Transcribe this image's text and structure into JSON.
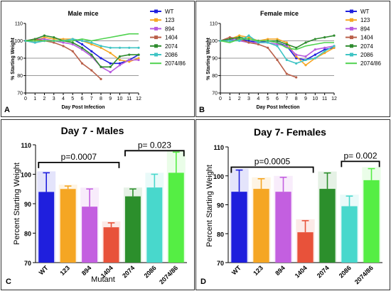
{
  "colors": {
    "WT": "#1f1fdd",
    "123": "#f5a623",
    "894": "#c35fe0",
    "1404": "#e8523a",
    "2074": "#2c8f2c",
    "2086": "#48d8cc",
    "2074/86": "#55ee44"
  },
  "line_colors": {
    "WT": "#1f1fdd",
    "123": "#f5a623",
    "894": "#b85adf",
    "1404": "#b9604a",
    "2074": "#2e8b2e",
    "2086": "#3fc4c4",
    "2074/86": "#4fd24f"
  },
  "chart_data": [
    {
      "panel": "A",
      "type": "line",
      "title": "Male mice",
      "xlabel": "Day Post Infection",
      "ylabel": "% Starting Weight",
      "x": [
        0,
        1,
        2,
        3,
        4,
        5,
        6,
        7,
        8,
        9,
        10,
        11,
        12
      ],
      "xlim": [
        0,
        12
      ],
      "ylim": [
        70,
        110
      ],
      "yticks": [
        70,
        80,
        90,
        100,
        110
      ],
      "series": [
        {
          "name": "WT",
          "x": [
            0,
            1,
            2,
            3,
            4,
            5,
            6,
            7,
            8,
            9,
            10,
            11,
            12
          ],
          "y": [
            100,
            99,
            100,
            100,
            100,
            101,
            98,
            94,
            90,
            87,
            87,
            89,
            92
          ]
        },
        {
          "name": "123",
          "x": [
            0,
            1,
            2,
            3,
            4,
            5,
            6,
            7,
            8,
            9,
            10,
            11,
            12
          ],
          "y": [
            100,
            100,
            102,
            101,
            101,
            101,
            100,
            98,
            96,
            93,
            89,
            88,
            90
          ]
        },
        {
          "name": "894",
          "x": [
            0,
            1,
            2,
            3,
            4,
            5,
            6,
            7,
            8,
            9,
            10,
            11,
            12
          ],
          "y": [
            100,
            101,
            101,
            100,
            99,
            98,
            95,
            91,
            85,
            82,
            86,
            89,
            89
          ]
        },
        {
          "name": "1404",
          "x": [
            0,
            1,
            2,
            3,
            4,
            5,
            6,
            7,
            8
          ],
          "y": [
            100,
            101,
            100,
            99,
            97,
            94,
            87,
            83,
            78
          ]
        },
        {
          "name": "2074",
          "x": [
            0,
            1,
            2,
            3,
            4,
            5,
            6,
            7,
            8,
            9,
            10,
            11,
            12
          ],
          "y": [
            100,
            101,
            103,
            102,
            100,
            99,
            96,
            92,
            85,
            85,
            91,
            92,
            92
          ]
        },
        {
          "name": "2086",
          "x": [
            0,
            1,
            2,
            3,
            4,
            5,
            6,
            7,
            8,
            9,
            10,
            11,
            12
          ],
          "y": [
            100,
            99,
            100,
            100,
            100,
            101,
            100,
            99,
            97,
            96,
            96,
            96,
            96
          ]
        },
        {
          "name": "2074/86",
          "x": [
            0,
            1,
            2,
            3,
            4,
            5,
            6,
            7,
            8,
            9,
            10,
            11,
            12
          ],
          "y": [
            100,
            100,
            100,
            100,
            100,
            100,
            101,
            100,
            101,
            102,
            103,
            104,
            104
          ]
        }
      ]
    },
    {
      "panel": "B",
      "type": "line",
      "title": "Female mice",
      "xlabel": "Day Post Infection",
      "ylabel": "% Starting Weight",
      "x": [
        0,
        1,
        2,
        3,
        4,
        5,
        6,
        7,
        8,
        9,
        10,
        11,
        12
      ],
      "xlim": [
        0,
        12
      ],
      "ylim": [
        70,
        110
      ],
      "yticks": [
        70,
        80,
        90,
        100,
        110
      ],
      "series": [
        {
          "name": "WT",
          "x": [
            0,
            1,
            2,
            3,
            4,
            5,
            6,
            7,
            8,
            9,
            10,
            11,
            12
          ],
          "y": [
            100,
            100,
            101,
            100,
            99,
            100,
            99,
            97,
            90,
            89,
            92,
            95,
            96
          ]
        },
        {
          "name": "123",
          "x": [
            0,
            1,
            2,
            3,
            4,
            5,
            6,
            7,
            8,
            9,
            10,
            11,
            12
          ],
          "y": [
            100,
            101,
            103,
            102,
            100,
            101,
            101,
            99,
            91,
            86,
            90,
            93,
            96
          ]
        },
        {
          "name": "894",
          "x": [
            0,
            1,
            2,
            3,
            4,
            5,
            6,
            7,
            8,
            9,
            10,
            11,
            12
          ],
          "y": [
            100,
            101,
            100,
            99,
            99,
            99,
            98,
            97,
            92,
            91,
            95,
            96,
            97
          ]
        },
        {
          "name": "1404",
          "x": [
            0,
            1,
            2,
            3,
            4,
            5,
            6,
            7,
            8
          ],
          "y": [
            100,
            102,
            101,
            99,
            98,
            96,
            89,
            81,
            79
          ]
        },
        {
          "name": "2074",
          "x": [
            0,
            1,
            2,
            3,
            4,
            5,
            6,
            7,
            8,
            9,
            10,
            11,
            12
          ],
          "y": [
            100,
            101,
            102,
            101,
            100,
            100,
            100,
            98,
            96,
            99,
            101,
            102,
            103
          ]
        },
        {
          "name": "2086",
          "x": [
            0,
            1,
            2,
            3,
            4,
            5,
            6,
            7,
            8,
            9,
            10,
            11,
            12
          ],
          "y": [
            100,
            100,
            100,
            103,
            99,
            99,
            97,
            89,
            87,
            89,
            90,
            94,
            97
          ]
        },
        {
          "name": "2074/86",
          "x": [
            0,
            1,
            2,
            3,
            4,
            5,
            6,
            7,
            8,
            9,
            10,
            11,
            12
          ],
          "y": [
            100,
            99,
            101,
            101,
            100,
            100,
            99,
            96,
            95,
            97,
            98,
            99,
            99
          ]
        }
      ]
    },
    {
      "panel": "C",
      "type": "bar",
      "title": "Day 7 - Males",
      "xlabel": "Mutant",
      "ylabel": "Percent Starting Weight",
      "categories": [
        "WT",
        "123",
        "894",
        "1404",
        "2074",
        "2086",
        "2074/86"
      ],
      "values": [
        94,
        95,
        89,
        82,
        92.5,
        95.5,
        100.5
      ],
      "errors": [
        6.5,
        1,
        6,
        1.5,
        2.5,
        4.5,
        7
      ],
      "ylim": [
        70,
        110
      ],
      "yticks": [
        70,
        80,
        90,
        100,
        110
      ],
      "annotations": [
        {
          "text": "p=0.0007",
          "from": "WT",
          "to": "1404",
          "y": 104
        },
        {
          "text": "p= 0.023",
          "from": "2074",
          "to": "2074/86",
          "y": 108
        }
      ]
    },
    {
      "panel": "D",
      "type": "bar",
      "title": "Day 7- Females",
      "xlabel": "",
      "ylabel": "Percent Starting Weight",
      "categories": [
        "WT",
        "123",
        "894",
        "1404",
        "2074",
        "2086",
        "2074/86"
      ],
      "values": [
        94.5,
        95.5,
        94.5,
        80.5,
        95.5,
        89.5,
        98.5
      ],
      "errors": [
        7.5,
        3.5,
        5,
        4,
        5.5,
        3.5,
        4
      ],
      "ylim": [
        70,
        110
      ],
      "yticks": [
        70,
        80,
        90,
        100,
        110
      ],
      "annotations": [
        {
          "text": "p=0.0005",
          "from": "WT",
          "to": "1404",
          "y": 103
        },
        {
          "text": "p= 0.002",
          "from": "2086",
          "to": "2074/86",
          "y": 105
        }
      ]
    }
  ]
}
